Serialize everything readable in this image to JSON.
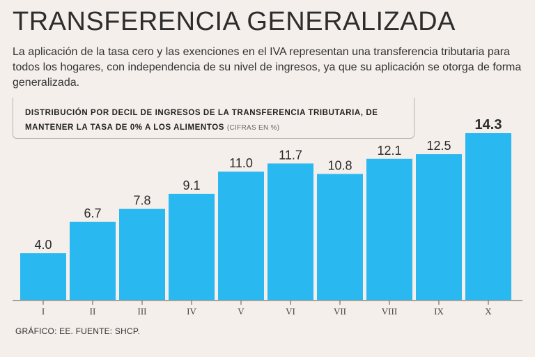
{
  "header": {
    "title": "TRANSFERENCIA GENERALIZADA",
    "subtitle": "La aplicación de la tasa cero y las exenciones en el IVA representan una transferencia tributaria para todos los hogares, con independencia de su nivel de ingresos, ya que su aplicación se otorga de forma generalizada."
  },
  "chart_data": {
    "type": "bar",
    "title": "Distribución por decil de ingresos de la transferencia tributaria, de mantener la tasa de 0% a los alimentos",
    "units_note": "(CIFRAS EN %)",
    "categories": [
      "I",
      "II",
      "III",
      "IV",
      "V",
      "VI",
      "VII",
      "VIII",
      "IX",
      "X"
    ],
    "values": [
      4.0,
      6.7,
      7.8,
      9.1,
      11.0,
      11.7,
      10.8,
      12.1,
      12.5,
      14.3
    ],
    "value_labels": [
      "4.0",
      "6.7",
      "7.8",
      "9.1",
      "11.0",
      "11.7",
      "10.8",
      "12.1",
      "12.5",
      "14.3"
    ],
    "highlight_index": 9,
    "xlabel": "",
    "ylabel": "",
    "ylim": [
      0,
      14.3
    ],
    "bar_color": "#29b8f0",
    "axis_color": "#555555"
  },
  "footer": {
    "source": "GRÁFICO: EE. FUENTE: SHCP."
  }
}
